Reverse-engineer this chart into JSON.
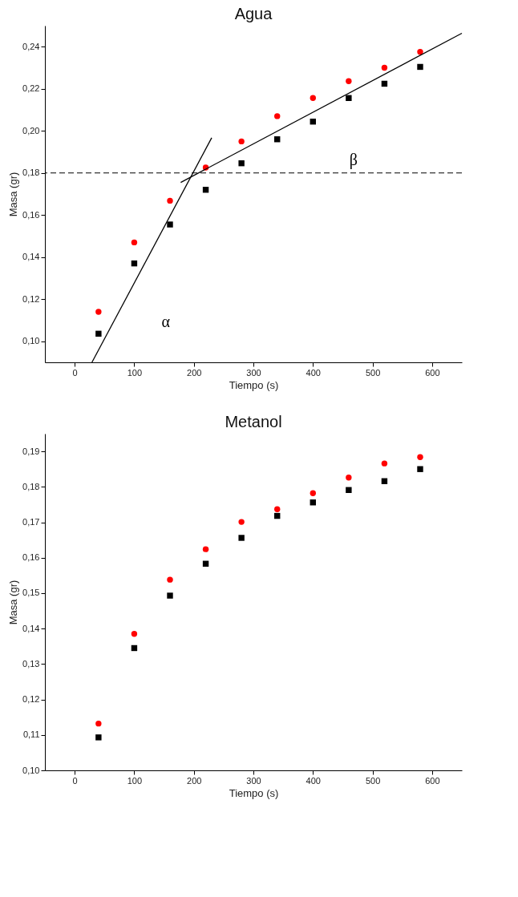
{
  "chart_data": [
    {
      "type": "scatter",
      "title": "Agua",
      "xlabel": "Tiempo (s)",
      "ylabel": "Masa (gr)",
      "legend": false,
      "grid": false,
      "xlim": [
        -50,
        650
      ],
      "xticks": [
        0,
        100,
        200,
        300,
        400,
        500,
        600
      ],
      "ylim": [
        0.09,
        0.25
      ],
      "yticks": [
        {
          "value": 0.1,
          "label": "0,10"
        },
        {
          "value": 0.12,
          "label": "0,12"
        },
        {
          "value": 0.14,
          "label": "0,14"
        },
        {
          "value": 0.16,
          "label": "0,16"
        },
        {
          "value": 0.18,
          "label": "0,18"
        },
        {
          "value": 0.2,
          "label": "0,20"
        },
        {
          "value": 0.22,
          "label": "0,22"
        },
        {
          "value": 0.24,
          "label": "0,24"
        }
      ],
      "x": [
        40,
        100,
        160,
        220,
        280,
        340,
        400,
        460,
        520,
        580
      ],
      "series": [
        {
          "type": "scatter",
          "marker": "square",
          "color": "#000000",
          "values": [
            0.1036,
            0.137,
            0.1555,
            0.172,
            0.1846,
            0.196,
            0.2044,
            0.2156,
            0.2224,
            0.2304
          ]
        },
        {
          "type": "scatter",
          "marker": "circle",
          "color": "#ff0000",
          "values": [
            0.114,
            0.147,
            0.1668,
            0.1826,
            0.195,
            0.207,
            0.2156,
            0.2236,
            0.23,
            0.2375
          ]
        },
        {
          "type": "line",
          "line_style": "solid",
          "color": "#000000",
          "x": [
            29,
            230
          ],
          "values": [
            0.09,
            0.1967
          ]
        },
        {
          "type": "line",
          "line_style": "solid",
          "color": "#000000",
          "x": [
            178,
            650
          ],
          "values": [
            0.1755,
            0.2464
          ]
        }
      ],
      "ref_lines": [
        {
          "axis": "y",
          "value": 0.18,
          "line_style": "dashed",
          "color": "#000000"
        }
      ],
      "annotations": [
        "α",
        "β"
      ]
    },
    {
      "type": "scatter",
      "title": "Metanol",
      "xlabel": "Tiempo (s)",
      "ylabel": "Masa (gr)",
      "legend": false,
      "grid": false,
      "xlim": [
        -50,
        650
      ],
      "xticks": [
        0,
        100,
        200,
        300,
        400,
        500,
        600
      ],
      "ylim": [
        0.1,
        0.195
      ],
      "yticks": [
        {
          "value": 0.1,
          "label": "0,10"
        },
        {
          "value": 0.11,
          "label": "0,11"
        },
        {
          "value": 0.12,
          "label": "0,12"
        },
        {
          "value": 0.13,
          "label": "0,13"
        },
        {
          "value": 0.14,
          "label": "0,14"
        },
        {
          "value": 0.15,
          "label": "0,15"
        },
        {
          "value": 0.16,
          "label": "0,16"
        },
        {
          "value": 0.17,
          "label": "0,17"
        },
        {
          "value": 0.18,
          "label": "0,18"
        },
        {
          "value": 0.19,
          "label": "0,19"
        }
      ],
      "x": [
        40,
        100,
        160,
        220,
        280,
        340,
        400,
        460,
        520,
        580
      ],
      "series": [
        {
          "type": "scatter",
          "marker": "square",
          "color": "#000000",
          "values": [
            0.1093,
            0.1345,
            0.1493,
            0.1583,
            0.1656,
            0.1718,
            0.1756,
            0.1791,
            0.1816,
            0.185
          ]
        },
        {
          "type": "scatter",
          "marker": "circle",
          "color": "#ff0000",
          "values": [
            0.1132,
            0.1385,
            0.1538,
            0.1624,
            0.1701,
            0.1737,
            0.1782,
            0.1826,
            0.1866,
            0.1884
          ]
        }
      ]
    }
  ]
}
